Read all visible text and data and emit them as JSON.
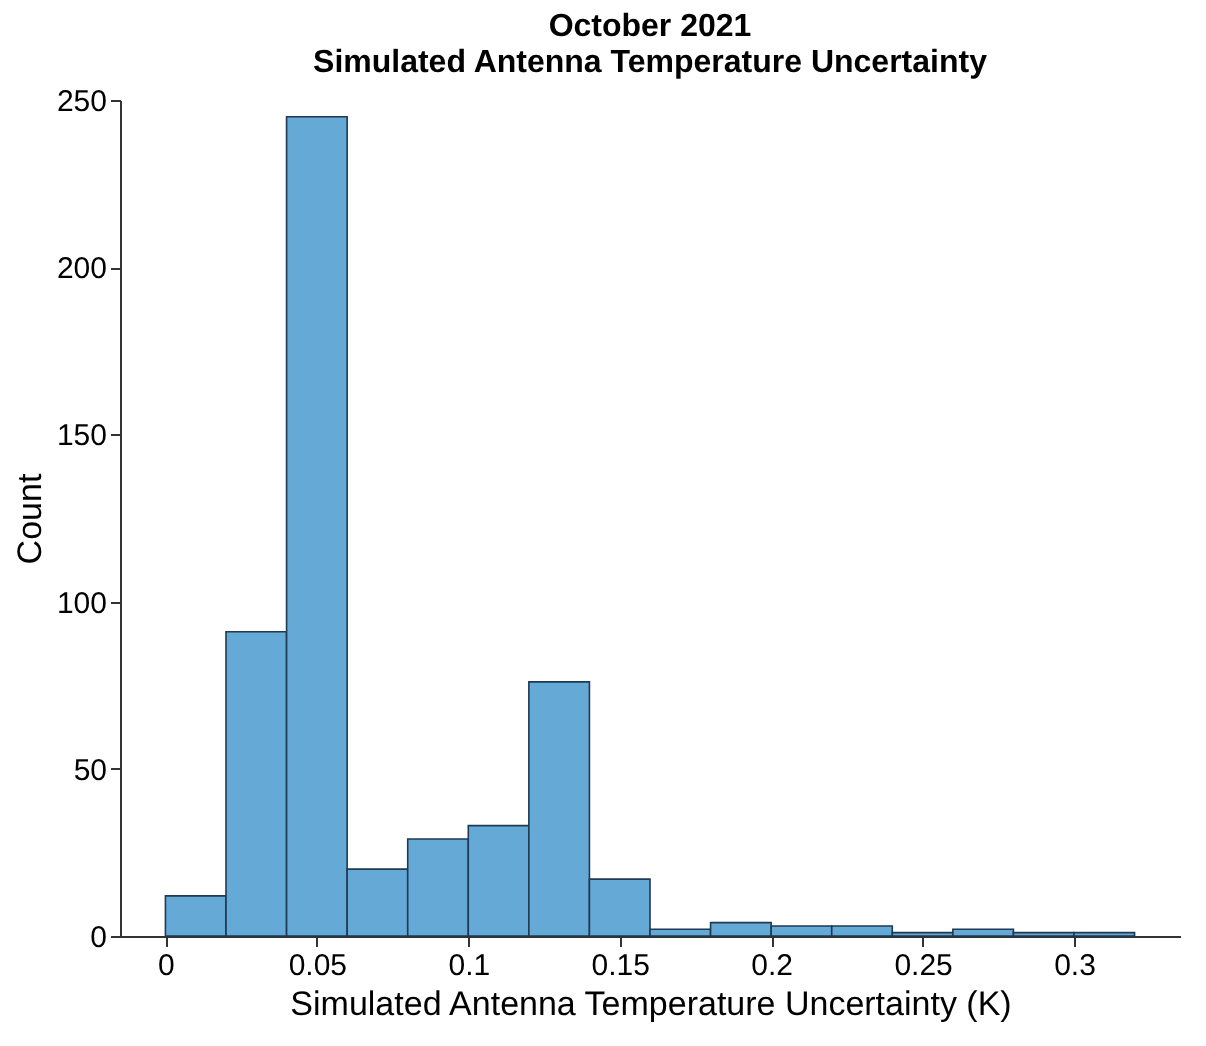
{
  "chart_data": {
    "type": "histogram",
    "title": "October 2021\nSimulated Antenna Temperature Uncertainty",
    "xlabel": "Simulated Antenna Temperature Uncertainty (K)",
    "ylabel": "Count",
    "bins": [
      0,
      0.02,
      0.04,
      0.06,
      0.08,
      0.1,
      0.12,
      0.14,
      0.16,
      0.18,
      0.2,
      0.22,
      0.24,
      0.26,
      0.28,
      0.3,
      0.32
    ],
    "values": [
      12,
      91,
      245,
      20,
      29,
      33,
      76,
      17,
      2,
      4,
      3,
      3,
      1,
      2,
      1,
      1
    ],
    "color": "#65a9d7",
    "xlim": [
      -0.015,
      0.335
    ],
    "xticks": [
      0,
      0.05,
      0.1,
      0.15,
      0.2,
      0.25,
      0.3
    ],
    "ylim": [
      0,
      250
    ],
    "yticks": [
      0,
      50,
      100,
      150,
      200,
      250
    ],
    "grid": false
  }
}
